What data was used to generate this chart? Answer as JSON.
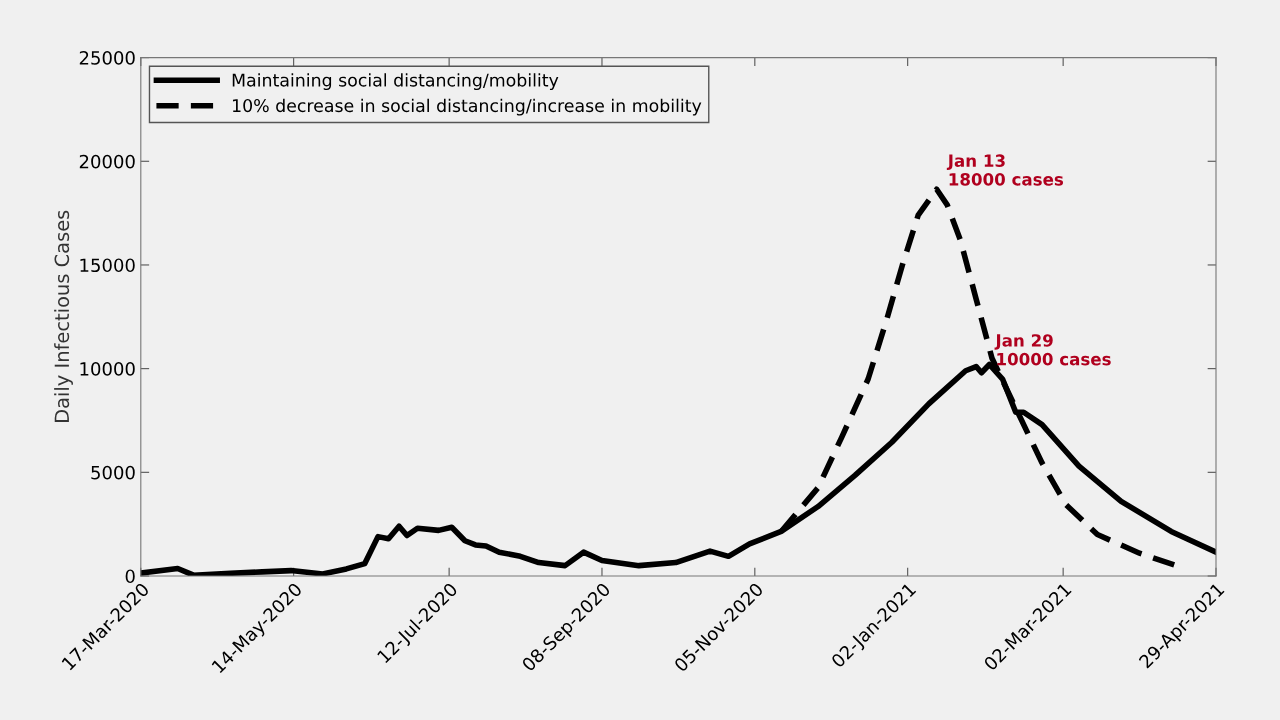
{
  "chart_data": {
    "type": "line",
    "ylabel": "Daily Infectious Cases",
    "xlim": [
      "2020-03-17",
      "2021-04-29"
    ],
    "ylim": [
      0,
      25000
    ],
    "xticks": [
      {
        "value": "2020-03-17",
        "label": "17-Mar-2020"
      },
      {
        "value": "2020-05-14",
        "label": "14-May-2020"
      },
      {
        "value": "2020-07-12",
        "label": "12-Jul-2020"
      },
      {
        "value": "2020-09-08",
        "label": "08-Sep-2020"
      },
      {
        "value": "2020-11-05",
        "label": "05-Nov-2020"
      },
      {
        "value": "2021-01-02",
        "label": "02-Jan-2021"
      },
      {
        "value": "2021-03-02",
        "label": "02-Mar-2021"
      },
      {
        "value": "2021-04-29",
        "label": "29-Apr-2021"
      }
    ],
    "yticks": [
      0,
      5000,
      10000,
      15000,
      20000,
      25000
    ],
    "grid": false,
    "legend": "top left",
    "marker": "none",
    "series": [
      {
        "name": "Maintaining social distancing/mobility",
        "color": "#000000",
        "line_style": "solid",
        "x": [
          "2020-03-17",
          "2020-03-31",
          "2020-04-06",
          "2020-04-20",
          "2020-05-02",
          "2020-05-13",
          "2020-05-25",
          "2020-06-03",
          "2020-06-10",
          "2020-06-15",
          "2020-06-19",
          "2020-06-23",
          "2020-06-26",
          "2020-06-30",
          "2020-07-08",
          "2020-07-13",
          "2020-07-18",
          "2020-07-22",
          "2020-07-26",
          "2020-07-31",
          "2020-08-08",
          "2020-08-15",
          "2020-08-25",
          "2020-09-01",
          "2020-09-08",
          "2020-09-22",
          "2020-10-06",
          "2020-10-19",
          "2020-10-26",
          "2020-11-03",
          "2020-11-15",
          "2020-11-29",
          "2020-12-13",
          "2020-12-27",
          "2021-01-10",
          "2021-01-24",
          "2021-01-28",
          "2021-01-30",
          "2021-02-02",
          "2021-02-07",
          "2021-02-12",
          "2021-02-15",
          "2021-02-22",
          "2021-03-08",
          "2021-03-24",
          "2021-04-12",
          "2021-04-29"
        ],
        "values": [
          140,
          360,
          40,
          130,
          200,
          260,
          100,
          340,
          600,
          1900,
          1800,
          2400,
          1950,
          2300,
          2200,
          2350,
          1700,
          1500,
          1450,
          1150,
          950,
          650,
          500,
          1150,
          750,
          500,
          650,
          1200,
          950,
          1550,
          2150,
          3350,
          4850,
          6450,
          8300,
          9900,
          10100,
          9800,
          10200,
          9500,
          7900,
          7900,
          7300,
          5300,
          3600,
          2150,
          1150
        ]
      },
      {
        "name": "10% decrease in social distancing/increase in mobility",
        "color": "#000000",
        "line_style": "dashed",
        "x": [
          "2020-11-15",
          "2020-11-29",
          "2020-12-08",
          "2020-12-18",
          "2020-12-25",
          "2020-12-31",
          "2021-01-06",
          "2021-01-13",
          "2021-01-17",
          "2021-01-22",
          "2021-01-28",
          "2021-02-03",
          "2021-02-12",
          "2021-02-22",
          "2021-03-03",
          "2021-03-15",
          "2021-03-31",
          "2021-04-14"
        ],
        "values": [
          2150,
          4260,
          6700,
          9500,
          12350,
          15000,
          17400,
          18650,
          17900,
          16200,
          13350,
          10500,
          8100,
          5450,
          3450,
          2000,
          1100,
          500
        ]
      }
    ],
    "annotations": [
      {
        "text": "Jan 13\n18000 cases",
        "x": "2021-01-13",
        "y": 18000
      },
      {
        "text": "Jan 29\n10000 cases",
        "x": "2021-01-29",
        "y": 10000
      }
    ]
  }
}
